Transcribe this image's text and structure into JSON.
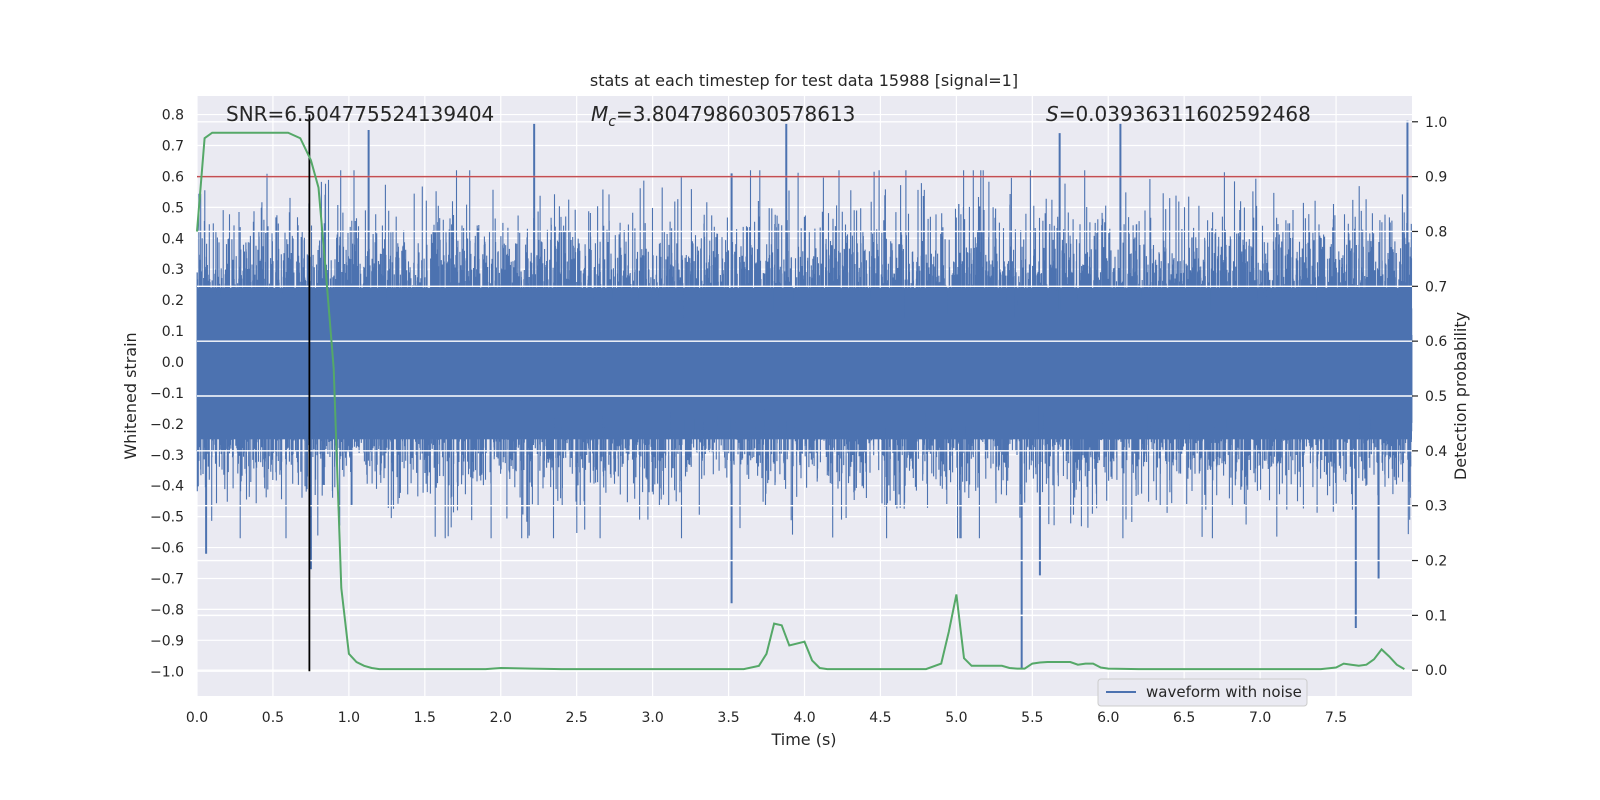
{
  "chart_data": {
    "type": "line",
    "title": "stats at each timestep for test data 15988 [signal=1]",
    "xlabel": "Time (s)",
    "ylabel_left": "Whitened strain",
    "ylabel_right": "Detection probability",
    "xlim": [
      0.0,
      8.0
    ],
    "ylim_left": [
      -1.08,
      0.86
    ],
    "ylim_right": [
      -0.047,
      1.047
    ],
    "x_ticks": [
      0.0,
      0.5,
      1.0,
      1.5,
      2.0,
      2.5,
      3.0,
      3.5,
      4.0,
      4.5,
      5.0,
      5.5,
      6.0,
      6.5,
      7.0,
      7.5
    ],
    "x_tick_labels": [
      "0.0",
      "0.5",
      "1.0",
      "1.5",
      "2.0",
      "2.5",
      "3.0",
      "3.5",
      "4.0",
      "4.5",
      "5.0",
      "5.5",
      "6.0",
      "6.5",
      "7.0",
      "7.5"
    ],
    "y_left_ticks": [
      0.8,
      0.7,
      0.6,
      0.5,
      0.4,
      0.3,
      0.2,
      0.1,
      0.0,
      -0.1,
      -0.2,
      -0.3,
      -0.4,
      -0.5,
      -0.6,
      -0.7,
      -0.8,
      -0.9,
      -1.0
    ],
    "y_left_tick_labels": [
      "0.8",
      "0.7",
      "0.6",
      "0.5",
      "0.4",
      "0.3",
      "0.2",
      "0.1",
      "0.0",
      "−0.1",
      "−0.2",
      "−0.3",
      "−0.4",
      "−0.5",
      "−0.6",
      "−0.7",
      "−0.8",
      "−0.9",
      "−1.0"
    ],
    "y_right_ticks": [
      1.0,
      0.9,
      0.8,
      0.7,
      0.6,
      0.5,
      0.4,
      0.3,
      0.2,
      0.1,
      0.0
    ],
    "y_right_tick_labels": [
      "1.0",
      "0.9",
      "0.8",
      "0.7",
      "0.6",
      "0.5",
      "0.4",
      "0.3",
      "0.2",
      "0.1",
      "0.0"
    ],
    "annotations": {
      "snr": "SNR=6.504775524139404",
      "mc_symbol": "M",
      "mc_sub": "c",
      "mc_value": "=3.8047986030578613",
      "s_symbol": "S",
      "s_value": "=0.03936311602592468"
    },
    "legend": {
      "label": "waveform with noise",
      "placement": "lower-right"
    },
    "threshold": {
      "axis": "right",
      "value": 0.9,
      "color": "#c44e52"
    },
    "vertical_marker": {
      "x": 0.74,
      "y_from": -1.0,
      "y_to": 0.8,
      "color": "#000000"
    },
    "series": [
      {
        "name": "waveform with noise",
        "axis": "left",
        "color": "#4c72b0",
        "style": "noise",
        "approx_envelope": {
          "typical_max": 0.5,
          "typical_min": -0.45,
          "peak_max": 0.78,
          "peak_min": -0.99
        },
        "spikes": [
          {
            "x": 1.13,
            "y": 0.75
          },
          {
            "x": 2.22,
            "y": 0.77
          },
          {
            "x": 3.52,
            "y": -0.78
          },
          {
            "x": 3.52,
            "y": 0.61
          },
          {
            "x": 3.88,
            "y": 0.77
          },
          {
            "x": 5.43,
            "y": -0.99
          },
          {
            "x": 5.55,
            "y": -0.69
          },
          {
            "x": 5.68,
            "y": 0.74
          },
          {
            "x": 6.08,
            "y": 0.77
          },
          {
            "x": 7.63,
            "y": -0.86
          },
          {
            "x": 7.78,
            "y": -0.7
          },
          {
            "x": 7.97,
            "y": 0.78
          },
          {
            "x": 0.75,
            "y": -0.67
          },
          {
            "x": 0.06,
            "y": -0.62
          }
        ]
      },
      {
        "name": "",
        "axis": "right",
        "color": "#55a868",
        "x": [
          0.0,
          0.05,
          0.1,
          0.2,
          0.3,
          0.4,
          0.5,
          0.6,
          0.68,
          0.75,
          0.8,
          0.85,
          0.9,
          0.95,
          1.0,
          1.05,
          1.1,
          1.15,
          1.2,
          1.3,
          1.5,
          1.7,
          1.9,
          2.0,
          2.2,
          2.4,
          2.6,
          2.8,
          3.0,
          3.2,
          3.4,
          3.6,
          3.7,
          3.75,
          3.8,
          3.85,
          3.9,
          4.0,
          4.05,
          4.1,
          4.15,
          4.2,
          4.4,
          4.6,
          4.8,
          4.9,
          4.95,
          5.0,
          5.05,
          5.1,
          5.2,
          5.3,
          5.35,
          5.4,
          5.45,
          5.5,
          5.55,
          5.6,
          5.7,
          5.75,
          5.8,
          5.85,
          5.9,
          5.95,
          6.0,
          6.2,
          6.5,
          6.8,
          7.0,
          7.2,
          7.4,
          7.5,
          7.55,
          7.6,
          7.65,
          7.7,
          7.75,
          7.8,
          7.85,
          7.9,
          7.95
        ],
        "y": [
          0.8,
          0.97,
          0.98,
          0.98,
          0.98,
          0.98,
          0.98,
          0.98,
          0.97,
          0.93,
          0.88,
          0.72,
          0.55,
          0.15,
          0.03,
          0.015,
          0.008,
          0.004,
          0.002,
          0.002,
          0.002,
          0.002,
          0.002,
          0.004,
          0.003,
          0.002,
          0.002,
          0.002,
          0.002,
          0.002,
          0.002,
          0.002,
          0.008,
          0.03,
          0.085,
          0.082,
          0.045,
          0.052,
          0.018,
          0.004,
          0.002,
          0.002,
          0.002,
          0.002,
          0.002,
          0.012,
          0.07,
          0.138,
          0.022,
          0.008,
          0.008,
          0.008,
          0.004,
          0.003,
          0.003,
          0.012,
          0.014,
          0.015,
          0.015,
          0.015,
          0.01,
          0.012,
          0.012,
          0.005,
          0.003,
          0.002,
          0.002,
          0.002,
          0.002,
          0.002,
          0.002,
          0.005,
          0.012,
          0.01,
          0.008,
          0.01,
          0.02,
          0.038,
          0.025,
          0.01,
          0.002
        ]
      }
    ]
  }
}
